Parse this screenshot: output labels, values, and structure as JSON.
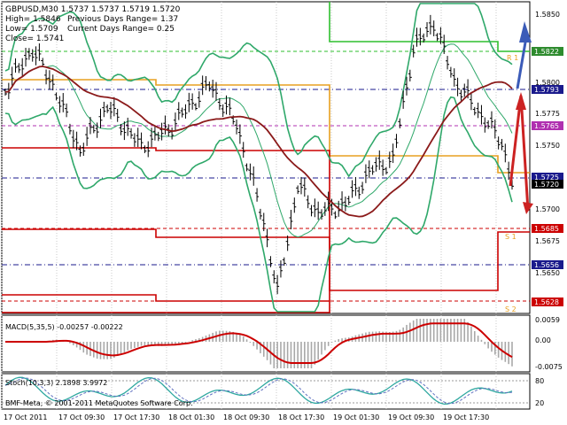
{
  "header": {
    "symbol_line": "GBPUSD,M30  1.5737 1.5737 1.5719 1.5720",
    "high": "High= 1.5846",
    "low": "Low= 1.5709",
    "close": "Close= 1.5741",
    "prev_range": "Previous Days Range= 1.37",
    "curr_range": "Current Days Range= 0.25"
  },
  "price_axis": {
    "ticks": [
      "1.5850",
      "1.5800",
      "1.5775",
      "1.5750",
      "1.5700",
      "1.5675",
      "1.5650"
    ],
    "badges": [
      {
        "label": "1.5822",
        "color": "#2e8b2e"
      },
      {
        "label": "1.5793",
        "color": "#1a1a8c"
      },
      {
        "label": "1.5765",
        "color": "#b030b0"
      },
      {
        "label": "1.5725",
        "color": "#1a1a8c"
      },
      {
        "label": "1.5720",
        "color": "#000000"
      },
      {
        "label": "1.5685",
        "color": "#cc0000"
      },
      {
        "label": "1.5656",
        "color": "#1a1a8c"
      },
      {
        "label": "1.5628",
        "color": "#cc0000"
      }
    ]
  },
  "level_labels": [
    "R 1",
    "S 1",
    "S 2"
  ],
  "macd": {
    "label": "MACD(5,35,5) -0.00257 -0.00222",
    "ticks": [
      "0.0059",
      "0.00",
      "-0.0075"
    ]
  },
  "stoch": {
    "label": "Stoch(10,3,3) 2.1898 3.9972",
    "watermark": "BMF-Meta, © 2001-2011 MetaQuotes Software Corp.",
    "ticks": [
      "80",
      "20"
    ]
  },
  "time_axis": [
    "17 Oct 2011",
    "17 Oct 09:30",
    "17 Oct 17:30",
    "18 Oct 01:30",
    "18 Oct 09:30",
    "18 Oct 17:30",
    "19 Oct 01:30",
    "19 Oct 09:30",
    "19 Oct 17:30"
  ],
  "colors": {
    "up_arrow": "#3b5bb8",
    "down_arrow": "#cc2222",
    "band": "#2fa86a",
    "ma": "#8b1a1a",
    "pivot_orange": "#e8a020",
    "support_red": "#cc0000",
    "resist_green": "#2fbf2f"
  }
}
